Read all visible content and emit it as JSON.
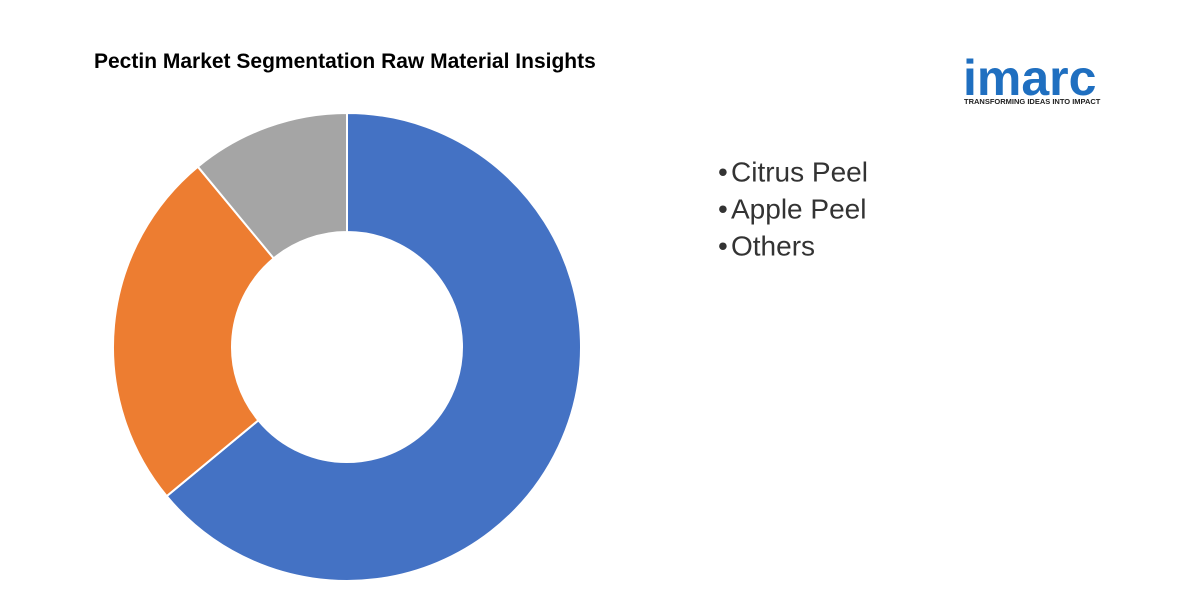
{
  "chart_data": {
    "type": "donut",
    "title": "Pectin Market Segmentation Raw Material Insights",
    "categories": [
      "Citrus Peel",
      "Apple Peel",
      "Others"
    ],
    "values": [
      64,
      25,
      11
    ],
    "colors": [
      "#4472c4",
      "#ed7d31",
      "#a5a5a5"
    ]
  },
  "logo": {
    "name": "imarc",
    "tagline": "TRANSFORMING IDEAS INTO IMPACT"
  }
}
